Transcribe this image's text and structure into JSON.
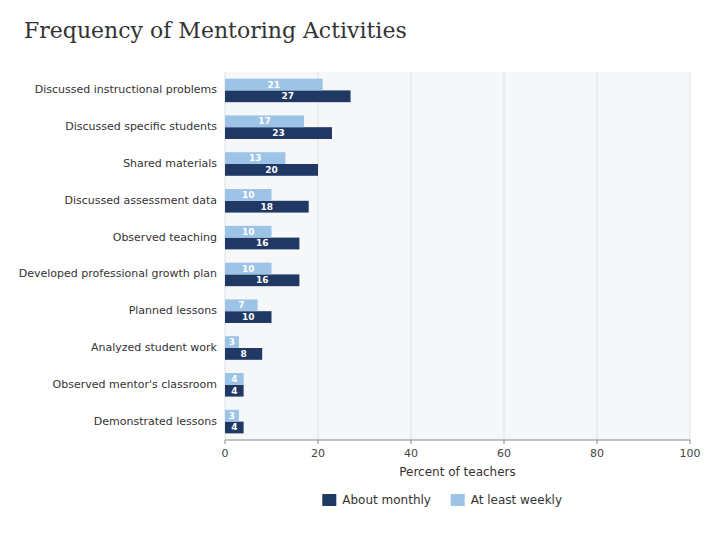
{
  "chart_data": {
    "type": "bar",
    "orientation": "horizontal",
    "title": "Frequency of Mentoring Activities",
    "categories": [
      "Discussed instructional problems",
      "Discussed specific students",
      "Shared materials",
      "Discussed assessment data",
      "Observed teaching",
      "Developed professional growth plan",
      "Planned lessons",
      "Analyzed student work",
      "Observed mentor's classroom",
      "Demonstrated lessons"
    ],
    "series": [
      {
        "name": "About monthly",
        "color": "#1F3864",
        "values": [
          27,
          23,
          20,
          18,
          16,
          16,
          10,
          8,
          4,
          4
        ]
      },
      {
        "name": "At least weekly",
        "color": "#9DC3E6",
        "values": [
          21,
          17,
          13,
          10,
          10,
          10,
          7,
          3,
          4,
          3
        ]
      }
    ],
    "xlabel": "Percent of teachers",
    "xlim": [
      0,
      100
    ],
    "xticks": [
      0,
      20,
      40,
      60,
      80,
      100
    ],
    "grid": true,
    "legend": "bottom",
    "data_labels": true
  }
}
